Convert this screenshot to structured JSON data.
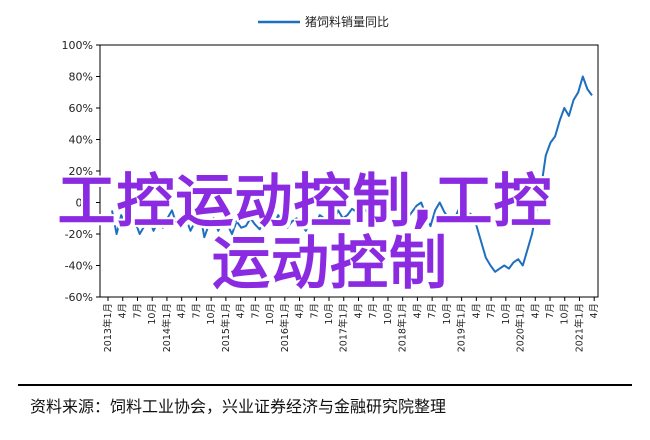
{
  "chart_data": {
    "type": "line",
    "title": "",
    "xlabel": "",
    "ylabel": "",
    "ylim": [
      -60,
      100
    ],
    "y_ticks": [
      -60,
      -40,
      -20,
      0,
      20,
      40,
      60,
      80,
      100
    ],
    "y_tick_labels": [
      "-60%",
      "-40%",
      "-20%",
      "0%",
      "20%",
      "40%",
      "60%",
      "80%",
      "100%"
    ],
    "x_tick_labels": [
      "2013年1月",
      "4月",
      "7月",
      "10月",
      "2014年1月",
      "4月",
      "7月",
      "10月",
      "2015年1月",
      "4月",
      "7月",
      "10月",
      "2016年1月",
      "4月",
      "7月",
      "10月",
      "2017年1月",
      "4月",
      "7月",
      "10月",
      "2018年1月",
      "4月",
      "7月",
      "10月",
      "2019年1月",
      "4月",
      "7月",
      "10月",
      "2020年1月",
      "4月",
      "7月",
      "10月",
      "2021年1月",
      "4月"
    ],
    "legend": {
      "placement": "top-center"
    },
    "series": [
      {
        "name": "猪饲料销量同比",
        "color": "#1f6fbf",
        "values": [
          -5,
          -20,
          -8,
          -15,
          -10,
          -12,
          -20,
          -15,
          -10,
          -18,
          -12,
          -16,
          -10,
          -5,
          -14,
          -8,
          -10,
          -18,
          -12,
          -5,
          -22,
          -14,
          -10,
          -18,
          -12,
          -14,
          -20,
          -12,
          -16,
          -15,
          -10,
          -14,
          -17,
          -12,
          -10,
          -15,
          -8,
          -13,
          -16,
          -12,
          -10,
          -14,
          -18,
          -12,
          -15,
          -8,
          -10,
          -14,
          -12,
          -5,
          -10,
          -8,
          -4,
          -6,
          -2,
          -5,
          -8,
          -10,
          -12,
          -8,
          -5,
          0,
          2,
          -5,
          -10,
          -6,
          -2,
          0,
          -8,
          -15,
          -5,
          0,
          -6,
          -10,
          -12,
          -5,
          -10,
          -6,
          -8,
          -15,
          -25,
          -35,
          -40,
          -44,
          -42,
          -40,
          -42,
          -38,
          -36,
          -40,
          -30,
          -20,
          -5,
          10,
          30,
          38,
          42,
          52,
          60,
          55,
          65,
          70,
          80,
          72,
          68
        ]
      }
    ]
  },
  "overlay": {
    "line1": "工控运动控制,工控",
    "line2": "运动控制"
  },
  "source_note": "资料来源：饲料工业协会，兴业证券经济与金融研究院整理"
}
